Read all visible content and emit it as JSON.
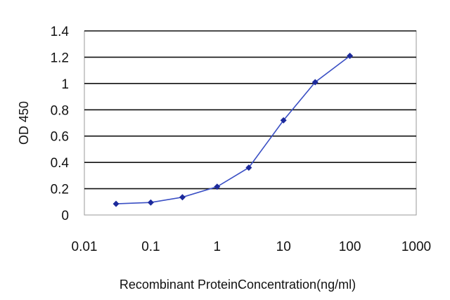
{
  "chart_data": {
    "type": "line",
    "title": "",
    "xlabel": "Recombinant ProteinConcentration(ng/ml)",
    "ylabel": "OD 450",
    "x_scale": "log",
    "xlim": [
      0.01,
      1000
    ],
    "ylim": [
      0,
      1.4
    ],
    "x_ticks": [
      "0.01",
      "0.1",
      "1",
      "10",
      "100",
      "1000"
    ],
    "y_ticks": [
      "0",
      "0.2",
      "0.4",
      "0.6",
      "0.8",
      "1",
      "1.2",
      "1.4"
    ],
    "grid": "horizontal",
    "legend": "none",
    "series": [
      {
        "x": [
          0.03,
          0.1,
          0.3,
          1,
          3,
          10,
          30,
          100
        ],
        "y": [
          0.085,
          0.095,
          0.135,
          0.215,
          0.36,
          0.72,
          1.01,
          1.21
        ]
      }
    ],
    "colors": {
      "line": "#3a4fc4",
      "marker": "#1c2a9c",
      "grid": "#111111",
      "plot_border": "#888888"
    }
  }
}
